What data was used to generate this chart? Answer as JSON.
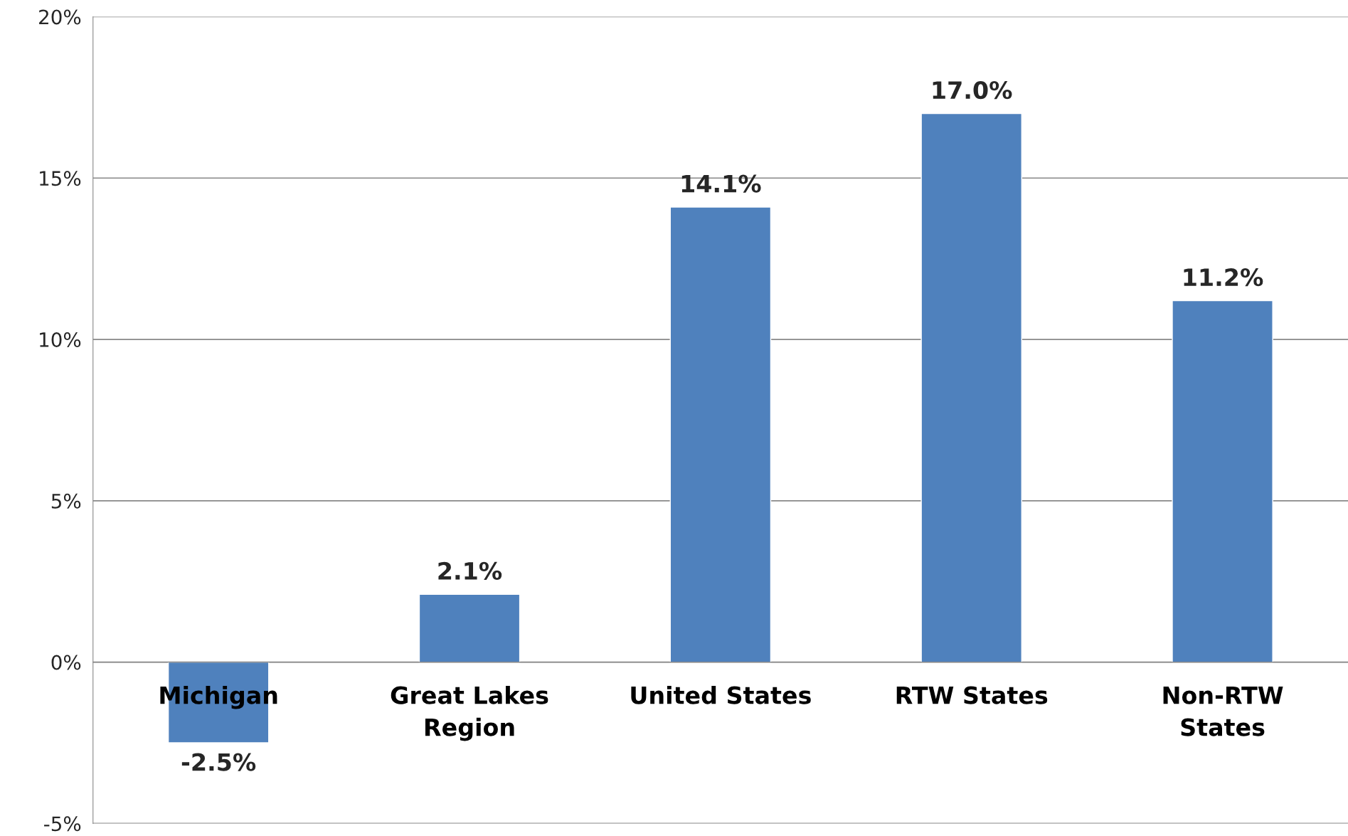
{
  "chart_data": {
    "type": "bar",
    "categories": [
      "Michigan",
      "Great Lakes\nRegion",
      "United States",
      "RTW States",
      "Non-RTW\nStates"
    ],
    "values": [
      -2.5,
      2.1,
      14.1,
      17.0,
      11.2
    ],
    "value_labels": [
      "-2.5%",
      "2.1%",
      "14.1%",
      "17.0%",
      "11.2%"
    ],
    "color": "#4f81bd",
    "ylim": [
      -5,
      20
    ],
    "yticks": [
      {
        "value": -5,
        "label": "-5%"
      },
      {
        "value": 0,
        "label": "0%"
      },
      {
        "value": 5,
        "label": "5%"
      },
      {
        "value": 10,
        "label": "10%"
      },
      {
        "value": 15,
        "label": "15%"
      },
      {
        "value": 20,
        "label": "20%"
      }
    ],
    "grid": "y",
    "legend": false
  }
}
